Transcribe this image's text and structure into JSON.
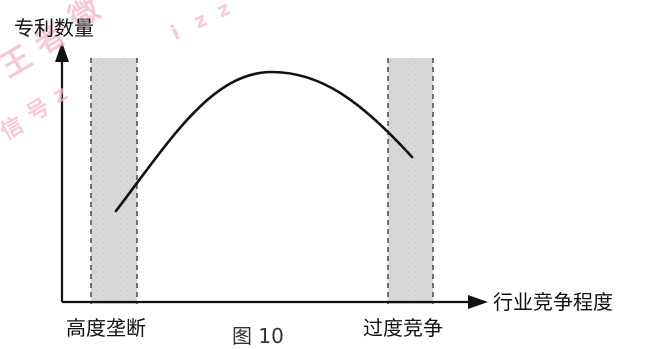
{
  "diagram": {
    "y_axis_label": "专利数量",
    "x_axis_label": "行业竞争程度",
    "left_band_label": "高度垄断",
    "right_band_label": "过度竞争",
    "caption": "图 10",
    "watermark_chars": [
      "王",
      "者",
      "微",
      "信",
      "号",
      "z",
      "i",
      "z",
      "z"
    ],
    "colors": {
      "axis": "#111111",
      "curve": "#111111",
      "band_fill": "#d8d8d8",
      "band_border": "#333333",
      "watermark": "#f4b8cc"
    }
  }
}
